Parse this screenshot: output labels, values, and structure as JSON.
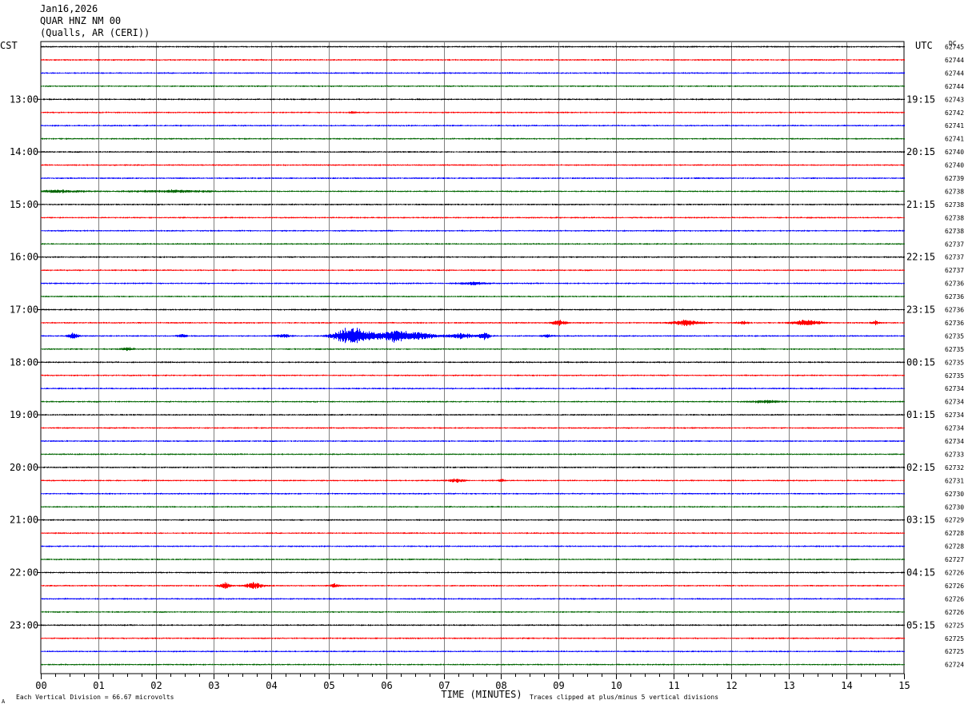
{
  "header": {
    "date": "Jan16,2026",
    "station": "QUAR HNZ NM 00",
    "location": "(Qualls, AR (CERI))"
  },
  "labels": {
    "left_tz": "CST",
    "right_tz": "UTC",
    "dc": "DC",
    "xlabel": "TIME (MINUTES)",
    "scale_note": "Each Vertical Division =   66.67 microvolts",
    "clip_note": "Traces clipped at plus/minus 5 vertical divisions",
    "corner_mark": "A"
  },
  "colors": {
    "trace_cycle": [
      "#000000",
      "#ff0000",
      "#0000ff",
      "#006600"
    ],
    "grid": "#808080"
  },
  "chart_data": {
    "type": "line",
    "title": "QUAR HNZ NM 00",
    "xlabel": "TIME (MINUTES)",
    "x_ticks": [
      "00",
      "01",
      "02",
      "03",
      "04",
      "05",
      "06",
      "07",
      "08",
      "09",
      "10",
      "11",
      "12",
      "13",
      "14",
      "15"
    ],
    "xlim": [
      0,
      15
    ],
    "trace_count": 48,
    "trace_minutes": 15,
    "left_time_labels": [
      {
        "trace": 4,
        "label": "13:00"
      },
      {
        "trace": 8,
        "label": "14:00"
      },
      {
        "trace": 12,
        "label": "15:00"
      },
      {
        "trace": 16,
        "label": "16:00"
      },
      {
        "trace": 20,
        "label": "17:00"
      },
      {
        "trace": 24,
        "label": "18:00"
      },
      {
        "trace": 28,
        "label": "19:00"
      },
      {
        "trace": 32,
        "label": "20:00"
      },
      {
        "trace": 36,
        "label": "21:00"
      },
      {
        "trace": 40,
        "label": "22:00"
      },
      {
        "trace": 44,
        "label": "23:00"
      }
    ],
    "right_time_labels": [
      {
        "trace": 4,
        "label": "19:15"
      },
      {
        "trace": 8,
        "label": "20:15"
      },
      {
        "trace": 12,
        "label": "21:15"
      },
      {
        "trace": 16,
        "label": "22:15"
      },
      {
        "trace": 20,
        "label": "23:15"
      },
      {
        "trace": 24,
        "label": "00:15"
      },
      {
        "trace": 28,
        "label": "01:15"
      },
      {
        "trace": 32,
        "label": "02:15"
      },
      {
        "trace": 36,
        "label": "03:15"
      },
      {
        "trace": 40,
        "label": "04:15"
      },
      {
        "trace": 44,
        "label": "05:15"
      }
    ],
    "dc_offsets": [
      "62745",
      "62744",
      "62744",
      "62744",
      "62743",
      "62742",
      "62741",
      "62741",
      "62740",
      "62740",
      "62739",
      "62738",
      "62738",
      "62738",
      "62738",
      "62737",
      "62737",
      "62737",
      "62736",
      "62736",
      "62736",
      "62736",
      "62735",
      "62735",
      "62735",
      "62735",
      "62734",
      "62734",
      "62734",
      "62734",
      "62734",
      "62733",
      "62732",
      "62731",
      "62730",
      "62730",
      "62729",
      "62728",
      "62728",
      "62727",
      "62726",
      "62726",
      "62726",
      "62726",
      "62725",
      "62725",
      "62725",
      "62724"
    ],
    "events": [
      {
        "trace": 5,
        "minute": 5.4,
        "width": 0.1,
        "amp": 0.5
      },
      {
        "trace": 11,
        "minute": 0.3,
        "width": 1.0,
        "amp": 0.35
      },
      {
        "trace": 11,
        "minute": 2.3,
        "width": 1.6,
        "amp": 0.3
      },
      {
        "trace": 18,
        "minute": 7.5,
        "width": 0.5,
        "amp": 0.4
      },
      {
        "trace": 21,
        "minute": 9.0,
        "width": 0.25,
        "amp": 0.8
      },
      {
        "trace": 21,
        "minute": 11.2,
        "width": 0.5,
        "amp": 0.9
      },
      {
        "trace": 21,
        "minute": 12.2,
        "width": 0.2,
        "amp": 0.5
      },
      {
        "trace": 21,
        "minute": 13.3,
        "width": 0.5,
        "amp": 0.9
      },
      {
        "trace": 21,
        "minute": 14.5,
        "width": 0.15,
        "amp": 0.6
      },
      {
        "trace": 22,
        "minute": 0.55,
        "width": 0.2,
        "amp": 0.9
      },
      {
        "trace": 22,
        "minute": 2.45,
        "width": 0.15,
        "amp": 0.7
      },
      {
        "trace": 22,
        "minute": 4.2,
        "width": 0.3,
        "amp": 0.5
      },
      {
        "trace": 22,
        "minute": 5.4,
        "width": 0.6,
        "amp": 3.2
      },
      {
        "trace": 22,
        "minute": 6.1,
        "width": 0.7,
        "amp": 2.0
      },
      {
        "trace": 22,
        "minute": 6.6,
        "width": 0.6,
        "amp": 1.0
      },
      {
        "trace": 22,
        "minute": 7.3,
        "width": 0.5,
        "amp": 0.8
      },
      {
        "trace": 22,
        "minute": 7.7,
        "width": 0.2,
        "amp": 1.2
      },
      {
        "trace": 22,
        "minute": 8.8,
        "width": 0.2,
        "amp": 0.5
      },
      {
        "trace": 23,
        "minute": 1.5,
        "width": 0.3,
        "amp": 0.4
      },
      {
        "trace": 27,
        "minute": 12.6,
        "width": 0.6,
        "amp": 0.35
      },
      {
        "trace": 33,
        "minute": 7.2,
        "width": 0.3,
        "amp": 0.5
      },
      {
        "trace": 33,
        "minute": 8.0,
        "width": 0.1,
        "amp": 0.6
      },
      {
        "trace": 41,
        "minute": 3.2,
        "width": 0.2,
        "amp": 0.9
      },
      {
        "trace": 41,
        "minute": 3.7,
        "width": 0.3,
        "amp": 1.2
      },
      {
        "trace": 41,
        "minute": 5.1,
        "width": 0.2,
        "amp": 0.5
      }
    ]
  }
}
